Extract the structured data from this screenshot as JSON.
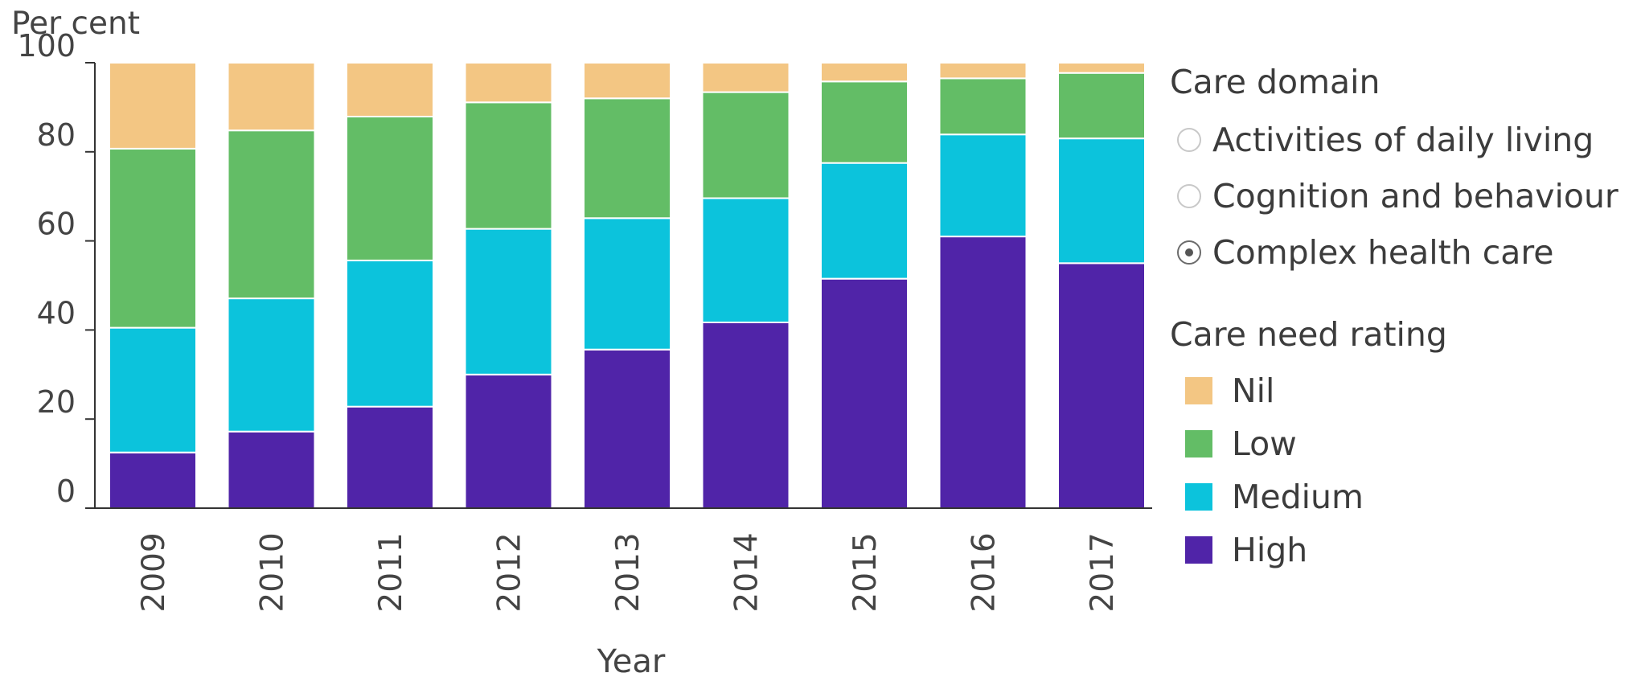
{
  "chart_data": {
    "type": "bar",
    "stacked": true,
    "ylabel": "Per cent",
    "xlabel": "Year",
    "ylim": [
      0,
      100
    ],
    "yticks": [
      0,
      20,
      40,
      60,
      80,
      100
    ],
    "categories": [
      "2009",
      "2010",
      "2011",
      "2012",
      "2013",
      "2014",
      "2015",
      "2016",
      "2017"
    ],
    "series": [
      {
        "name": "High",
        "color": "#5024a8",
        "values": [
          12.5,
          17.2,
          22.8,
          30.0,
          35.6,
          41.7,
          51.5,
          61.0,
          55.0
        ]
      },
      {
        "name": "Medium",
        "color": "#0cc3dc",
        "values": [
          28.0,
          29.9,
          32.8,
          32.7,
          29.5,
          27.9,
          26.0,
          22.9,
          28.0
        ]
      },
      {
        "name": "Low",
        "color": "#63bd66",
        "values": [
          40.2,
          37.7,
          32.3,
          28.4,
          26.9,
          23.8,
          18.3,
          12.6,
          14.7
        ]
      },
      {
        "name": "Nil",
        "color": "#f3c683",
        "values": [
          19.3,
          15.2,
          12.1,
          8.9,
          8.0,
          6.6,
          4.2,
          3.5,
          2.3
        ]
      }
    ],
    "grid": false
  },
  "legend": {
    "domain_title": "Care domain",
    "domain_options": [
      {
        "label": "Activities of daily living",
        "selected": false
      },
      {
        "label": "Cognition and behaviour",
        "selected": false
      },
      {
        "label": "Complex health care",
        "selected": true
      }
    ],
    "rating_title": "Care need rating",
    "rating_items": [
      {
        "label": "Nil",
        "color": "#f3c683"
      },
      {
        "label": "Low",
        "color": "#63bd66"
      },
      {
        "label": "Medium",
        "color": "#0cc3dc"
      },
      {
        "label": "High",
        "color": "#5024a8"
      }
    ]
  }
}
